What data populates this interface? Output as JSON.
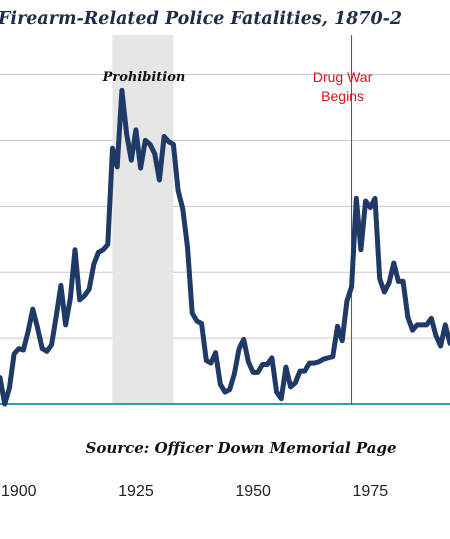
{
  "chart_data": {
    "type": "line",
    "title": "Firearm-Related Police Fatalities, 1870-2",
    "annotations": [
      {
        "label": "Prohibition",
        "start": 1920,
        "end": 1933
      },
      {
        "label": "Drug War",
        "label2": "Begins",
        "x": 1971
      }
    ],
    "source": "Source: Officer Down Memorial Page",
    "xlim": [
      1896,
      1992
    ],
    "ylim": [
      40,
      320
    ],
    "xticks": [
      "1900",
      "1925",
      "1950",
      "1975"
    ],
    "xtick_values": [
      1900,
      1925,
      1950,
      1975
    ],
    "grid": true,
    "colors": {
      "line": "#1f3a66",
      "baseline": "#2aa0b8",
      "shade": "#e6e6e6",
      "drug_war": "#e0101e"
    },
    "series": [
      {
        "x": [
          1896,
          1897,
          1898,
          1899,
          1900,
          1901,
          1902,
          1903,
          1904,
          1905,
          1906,
          1907,
          1908,
          1909,
          1910,
          1911,
          1912,
          1913,
          1914,
          1915,
          1916,
          1917,
          1918,
          1919,
          1920,
          1921,
          1922,
          1923,
          1924,
          1925,
          1926,
          1927,
          1928,
          1929,
          1930,
          1931,
          1932,
          1933,
          1934,
          1935,
          1936,
          1937,
          1938,
          1939,
          1940,
          1941,
          1942,
          1943,
          1944,
          1945,
          1946,
          1947,
          1948,
          1949,
          1950,
          1951,
          1952,
          1953,
          1954,
          1955,
          1956,
          1957,
          1958,
          1959,
          1960,
          1961,
          1962,
          1963,
          1964,
          1965,
          1966,
          1967,
          1968,
          1969,
          1970,
          1971,
          1972,
          1973,
          1974,
          1975,
          1976,
          1977,
          1978,
          1979,
          1980,
          1981,
          1982,
          1983,
          1984,
          1985,
          1986,
          1987,
          1988,
          1989,
          1990,
          1991,
          1992
        ],
        "values": [
          60,
          40,
          52,
          78,
          82,
          81,
          95,
          112,
          98,
          82,
          80,
          85,
          107,
          130,
          100,
          120,
          157,
          119,
          122,
          127,
          146,
          155,
          157,
          161,
          234,
          220,
          278,
          245,
          225,
          248,
          219,
          240,
          237,
          230,
          210,
          243,
          239,
          237,
          202,
          188,
          159,
          109,
          103,
          101,
          73,
          71,
          79,
          55,
          49,
          51,
          63,
          82,
          89,
          72,
          64,
          64,
          70,
          70,
          75,
          49,
          44,
          68,
          53,
          56,
          65,
          65,
          71,
          71,
          72,
          74,
          75,
          76,
          99,
          88,
          118,
          129,
          196,
          157,
          194,
          189,
          196,
          135,
          125,
          132,
          147,
          133,
          133,
          106,
          96,
          100,
          100,
          100,
          105,
          92,
          84,
          100,
          86
        ]
      }
    ]
  }
}
